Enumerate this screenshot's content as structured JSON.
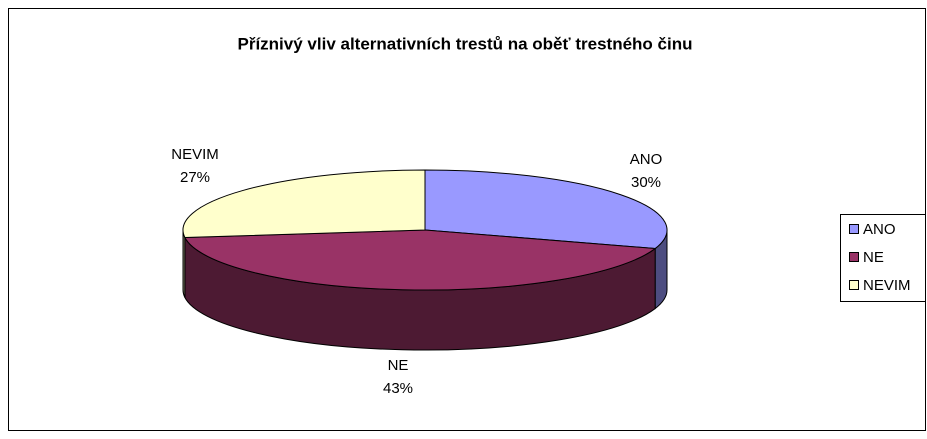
{
  "chart_data": {
    "type": "pie3d",
    "title": "Příznivý vliv alternativních trestů na oběť trestného činu",
    "categories": [
      "ANO",
      "NE",
      "NEVIM"
    ],
    "values": [
      30,
      43,
      27
    ],
    "value_labels": [
      "30%",
      "43%",
      "27%"
    ],
    "colors": [
      "#9999ff",
      "#993366",
      "#ffffcc"
    ],
    "legend": "right"
  }
}
